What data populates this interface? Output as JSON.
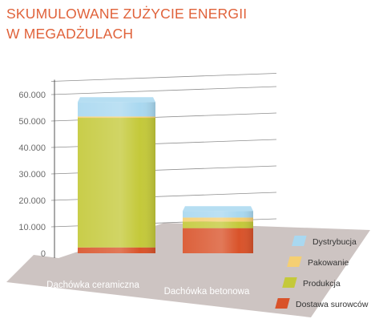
{
  "chart_data": {
    "type": "bar",
    "stacked": true,
    "title_lines": [
      "SKUMULOWANE ZUŻYCIE ENERGII",
      "W MEGADŻULACH"
    ],
    "categories": [
      "Dachówka ceramiczna",
      "Dachówka betonowa"
    ],
    "series": [
      {
        "name": "Dostawa surowców",
        "values": [
          2200,
          9500
        ],
        "color": "#d9532a"
      },
      {
        "name": "Produkcja",
        "values": [
          49000,
          2500
        ],
        "color": "#c4c93a"
      },
      {
        "name": "Pakowanie",
        "values": [
          500,
          1500
        ],
        "color": "#f5cf72"
      },
      {
        "name": "Dystrybucja",
        "values": [
          5500,
          2500
        ],
        "color": "#a9d8f0"
      }
    ],
    "legend_order": [
      "Dystrybucja",
      "Pakowanie",
      "Produkcja",
      "Dostawa surowców"
    ],
    "y_ticks": [
      "0",
      "10.000",
      "20.000",
      "30.000",
      "40.000",
      "50.000",
      "60.000"
    ],
    "ylim": [
      0,
      65000
    ],
    "grid": true,
    "legend_position": "right"
  }
}
